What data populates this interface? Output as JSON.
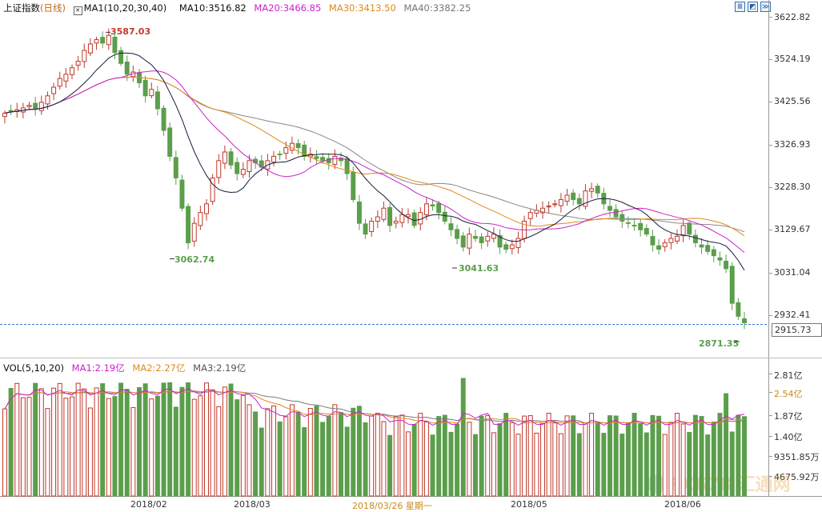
{
  "header": {
    "index_name": "上证指数",
    "period": "(日线)",
    "ma_spec": "MA1(10,20,30,40)",
    "ma10": "MA10:3516.82",
    "ma20": "MA20:3466.85",
    "ma30": "MA30:3413.50",
    "ma40": "MA40:3382.25"
  },
  "toolbar": {
    "btn1": "Ⅲ",
    "btn2": "◩",
    "btn3": "≫"
  },
  "price_axis": [
    "3622.82",
    "3524.19",
    "3425.56",
    "3326.93",
    "3228.30",
    "3129.67",
    "3031.04",
    "2932.41"
  ],
  "current_price": "2915.73",
  "annotations": {
    "high": "3587.03",
    "low1": "3062.74",
    "low2": "3041.63",
    "low3": "2871.35"
  },
  "vol_header": {
    "spec": "VOL(5,10,20)",
    "ma1": "MA1:2.19亿",
    "ma2": "MA2:2.27亿",
    "ma3": "MA3:2.19亿"
  },
  "vol_axis": [
    "2.81亿",
    "2.54亿",
    "1.87亿",
    "1.40亿",
    "9351.85万",
    "4675.92万"
  ],
  "x_axis": [
    "2018/02",
    "2018/03",
    "2018/03/26 星期一",
    "2018/05",
    "2018/06"
  ],
  "watermark": "FX678 汇通网",
  "colors": {
    "up": "#c0392b",
    "down": "#5b9e4b",
    "ma10": "#1a1a3a",
    "ma20": "#cc22cc",
    "ma30": "#e08a1a",
    "ma40": "#888888"
  },
  "chart_data": {
    "type": "candlestick",
    "title": "上证指数 (日线)",
    "price_range": [
      2871.35,
      3622.82
    ],
    "annotated_high": 3587.03,
    "annotated_lows": [
      3062.74,
      3041.63,
      2871.35
    ],
    "last_close": 2915.73,
    "moving_averages": [
      {
        "name": "MA10",
        "value": 3516.82
      },
      {
        "name": "MA20",
        "value": 3466.85
      },
      {
        "name": "MA30",
        "value": 3413.5
      },
      {
        "name": "MA40",
        "value": 3382.25
      }
    ],
    "volume_ma": [
      {
        "name": "MA1",
        "value": "2.19亿"
      },
      {
        "name": "MA2",
        "value": "2.27亿"
      },
      {
        "name": "MA3",
        "value": "2.19亿"
      }
    ]
  }
}
